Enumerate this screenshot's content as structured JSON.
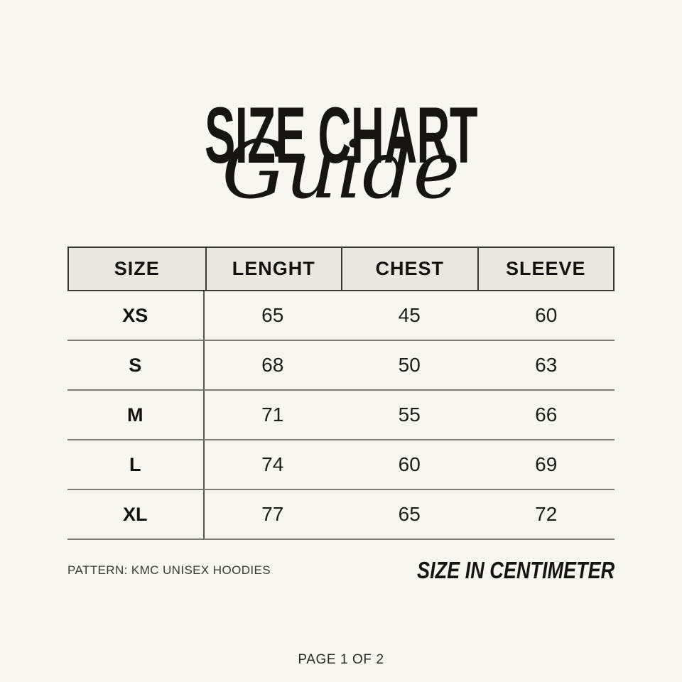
{
  "header": {
    "title": "SIZE CHART",
    "subtitle_script": "Guide"
  },
  "size_table": {
    "columns": [
      "SIZE",
      "LENGHT",
      "CHEST",
      "SLEEVE"
    ],
    "rows": [
      {
        "size": "XS",
        "length": "65",
        "chest": "45",
        "sleeve": "60"
      },
      {
        "size": "S",
        "length": "68",
        "chest": "50",
        "sleeve": "63"
      },
      {
        "size": "M",
        "length": "71",
        "chest": "55",
        "sleeve": "66"
      },
      {
        "size": "L",
        "length": "74",
        "chest": "60",
        "sleeve": "69"
      },
      {
        "size": "XL",
        "length": "77",
        "chest": "65",
        "sleeve": "72"
      }
    ]
  },
  "footer": {
    "pattern_note": "PATTERN: KMC UNISEX HOODIES",
    "unit_note": "SIZE IN CENTIMETER",
    "page_indicator": "PAGE 1 OF 2"
  },
  "colors": {
    "background": "#F7F6F1",
    "header_fill": "#EAE8E1",
    "header_border": "#3A3833",
    "row_line": "#7D7B76",
    "body_divider": "#55524E",
    "text": "#1F1D1A"
  },
  "chart_data": {
    "type": "table",
    "title": "SIZE CHART Guide",
    "columns": [
      "SIZE",
      "LENGHT",
      "CHEST",
      "SLEEVE"
    ],
    "rows": [
      [
        "XS",
        65,
        45,
        60
      ],
      [
        "S",
        68,
        50,
        63
      ],
      [
        "M",
        71,
        55,
        66
      ],
      [
        "L",
        74,
        60,
        69
      ],
      [
        "XL",
        77,
        65,
        72
      ]
    ],
    "units_note": "SIZE IN CENTIMETER"
  }
}
